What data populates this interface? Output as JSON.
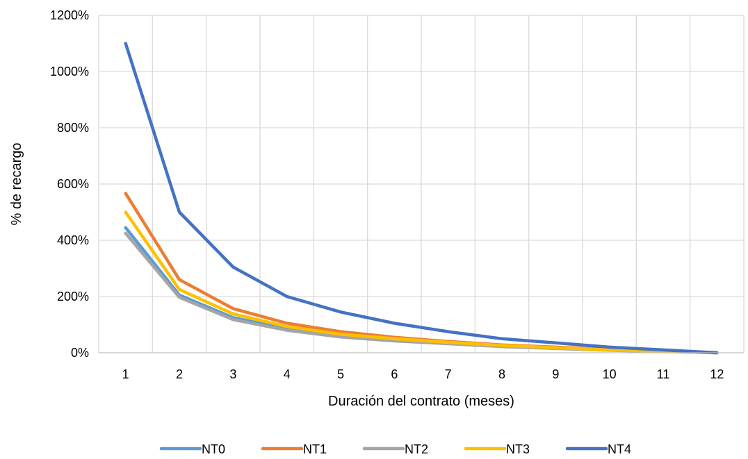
{
  "chart_data": {
    "type": "line",
    "title": "",
    "xlabel": "Duración del contrato (meses)",
    "ylabel": "% de recargo",
    "x": [
      1,
      2,
      3,
      4,
      5,
      6,
      7,
      8,
      9,
      10,
      11,
      12
    ],
    "xticks": [
      "1",
      "2",
      "3",
      "4",
      "5",
      "6",
      "7",
      "8",
      "9",
      "10",
      "11",
      "12"
    ],
    "ylim": [
      0,
      1200
    ],
    "yticks": [
      0,
      200,
      400,
      600,
      800,
      1000,
      1200
    ],
    "ytick_labels": [
      "0%",
      "200%",
      "400%",
      "600%",
      "800%",
      "1000%",
      "1200%"
    ],
    "grid": true,
    "legend_position": "bottom",
    "series": [
      {
        "name": "NT0",
        "color": "#5B9BD5",
        "values": [
          445,
          205,
          125,
          85,
          60,
          45,
          35,
          25,
          18,
          10,
          5,
          0
        ]
      },
      {
        "name": "NT1",
        "color": "#ED7D31",
        "values": [
          567,
          260,
          157,
          105,
          75,
          55,
          40,
          28,
          20,
          12,
          5,
          0
        ]
      },
      {
        "name": "NT2",
        "color": "#A5A5A5",
        "values": [
          425,
          197,
          118,
          80,
          56,
          42,
          32,
          22,
          15,
          9,
          4,
          0
        ]
      },
      {
        "name": "NT3",
        "color": "#FFC000",
        "values": [
          500,
          225,
          138,
          93,
          66,
          50,
          37,
          26,
          18,
          10,
          5,
          0
        ]
      },
      {
        "name": "NT4",
        "color": "#4472C4",
        "values": [
          1100,
          500,
          305,
          200,
          145,
          105,
          75,
          50,
          35,
          20,
          10,
          0
        ]
      }
    ]
  }
}
